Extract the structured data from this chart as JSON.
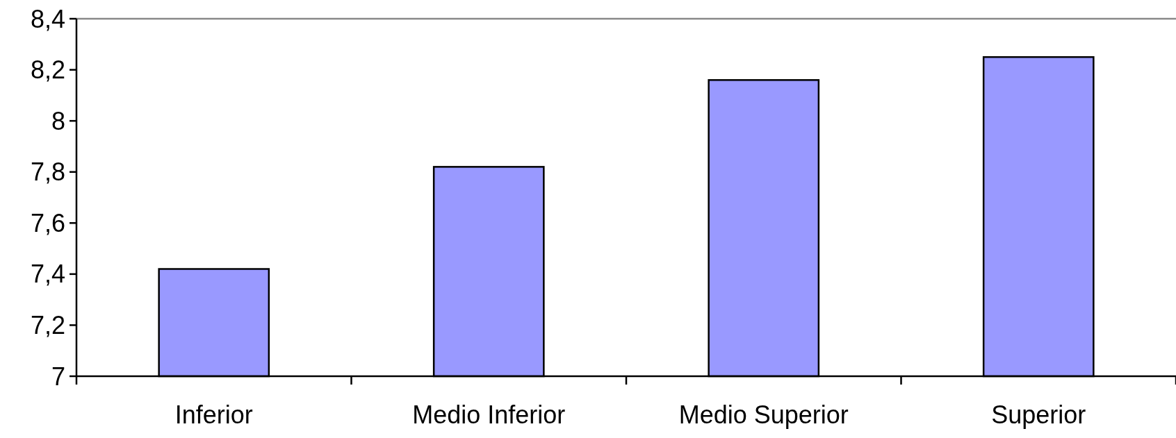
{
  "chart_data": {
    "type": "bar",
    "categories": [
      "Inferior",
      "Medio Inferior",
      "Medio Superior",
      "Superior"
    ],
    "values": [
      7.42,
      7.82,
      8.16,
      8.25
    ],
    "color": "#9999ff",
    "ylim": [
      7,
      8.4
    ],
    "yticks": [
      {
        "value": 7,
        "label": "7"
      },
      {
        "value": 7.2,
        "label": "7,2"
      },
      {
        "value": 7.4,
        "label": "7,4"
      },
      {
        "value": 7.6,
        "label": "7,6"
      },
      {
        "value": 7.8,
        "label": "7,8"
      },
      {
        "value": 8,
        "label": "8"
      },
      {
        "value": 8.2,
        "label": "8,2"
      },
      {
        "value": 8.4,
        "label": "8,4"
      }
    ],
    "grid": false
  }
}
